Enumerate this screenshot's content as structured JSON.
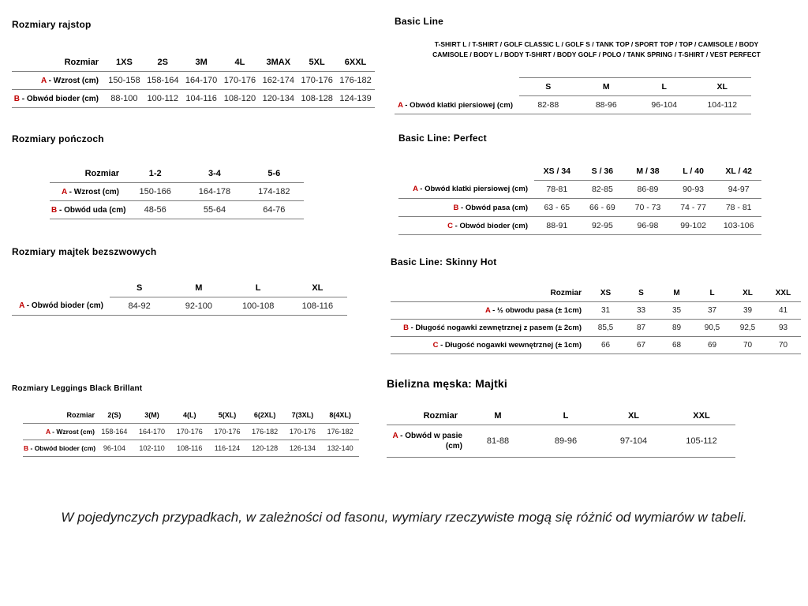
{
  "accent_color": "#c00000",
  "footnote": "W pojedynczych przypadkach, w zależności od fasonu, wymiary rzeczywiste mogą się różnić od wymiarów w tabeli.",
  "tables": [
    {
      "title": "Rozmiary rajstop",
      "corner": "Rozmiar",
      "columns": [
        "1XS",
        "2S",
        "3M",
        "4L",
        "3MAX",
        "5XL",
        "6XXL"
      ],
      "rows": [
        {
          "prefix": "A",
          "label": "Wzrost (cm)",
          "values": [
            "150-158",
            "158-164",
            "164-170",
            "170-176",
            "162-174",
            "170-176",
            "176-182"
          ]
        },
        {
          "prefix": "B",
          "label": "Obwód bioder (cm)",
          "values": [
            "88-100",
            "100-112",
            "104-116",
            "108-120",
            "120-134",
            "108-128",
            "124-139"
          ]
        }
      ]
    },
    {
      "title": "Rozmiary pończoch",
      "corner": "Rozmiar",
      "columns": [
        "1-2",
        "3-4",
        "5-6"
      ],
      "rows": [
        {
          "prefix": "A",
          "label": "Wzrost (cm)",
          "values": [
            "150-166",
            "164-178",
            "174-182"
          ]
        },
        {
          "prefix": "B",
          "label": "Obwód uda (cm)",
          "values": [
            "48-56",
            "55-64",
            "64-76"
          ]
        }
      ]
    },
    {
      "title": "Rozmiary majtek bezszwowych",
      "corner": "",
      "columns": [
        "S",
        "M",
        "L",
        "XL"
      ],
      "rows": [
        {
          "prefix": "A",
          "label": "Obwód bioder (cm)",
          "values": [
            "84-92",
            "92-100",
            "100-108",
            "108-116"
          ]
        }
      ]
    },
    {
      "title": "Rozmiary Leggings Black Brillant",
      "corner": "Rozmiar",
      "columns": [
        "2(S)",
        "3(M)",
        "4(L)",
        "5(XL)",
        "6(2XL)",
        "7(3XL)",
        "8(4XL)"
      ],
      "rows": [
        {
          "prefix": "A",
          "label": "Wzrost (cm)",
          "values": [
            "158-164",
            "164-170",
            "170-176",
            "170-176",
            "176-182",
            "170-176",
            "176-182"
          ]
        },
        {
          "prefix": "B",
          "label": "Obwód bioder (cm)",
          "values": [
            "96-104",
            "102-110",
            "108-116",
            "116-124",
            "120-128",
            "126-134",
            "132-140"
          ]
        }
      ]
    },
    {
      "title": "Basic Line",
      "subtitle_lines": [
        "T-SHIRT L / T-SHIRT / GOLF CLASSIC L / GOLF S / TANK TOP / SPORT TOP / TOP / CAMISOLE / BODY",
        "CAMISOLE / BODY L / BODY T-SHIRT / BODY GOLF / POLO / TANK SPRING / T-SHIRT / VEST PERFECT"
      ],
      "corner": "",
      "columns": [
        "S",
        "M",
        "L",
        "XL"
      ],
      "rows": [
        {
          "prefix": "A",
          "label": "Obwód klatki piersiowej (cm)",
          "values": [
            "82-88",
            "88-96",
            "96-104",
            "104-112"
          ]
        }
      ]
    },
    {
      "title": "Basic Line: Perfect",
      "corner": "",
      "columns": [
        "XS / 34",
        "S / 36",
        "M / 38",
        "L / 40",
        "XL / 42"
      ],
      "rows": [
        {
          "prefix": "A",
          "label": "Obwód klatki piersiowej (cm)",
          "values": [
            "78-81",
            "82-85",
            "86-89",
            "90-93",
            "94-97"
          ]
        },
        {
          "prefix": "B",
          "label": "Obwód pasa (cm)",
          "values": [
            "63 - 65",
            "66 - 69",
            "70 - 73",
            "74 - 77",
            "78 - 81"
          ]
        },
        {
          "prefix": "C",
          "label": "Obwód bioder (cm)",
          "values": [
            "88-91",
            "92-95",
            "96-98",
            "99-102",
            "103-106"
          ]
        }
      ]
    },
    {
      "title": "Basic Line: Skinny Hot",
      "corner": "Rozmiar",
      "columns": [
        "XS",
        "S",
        "M",
        "L",
        "XL",
        "XXL"
      ],
      "rows": [
        {
          "prefix": "A",
          "label": "½ obwodu pasa (± 1cm)",
          "values": [
            "31",
            "33",
            "35",
            "37",
            "39",
            "41"
          ]
        },
        {
          "prefix": "B",
          "label": "Długość nogawki zewnętrznej z pasem (± 2cm)",
          "values": [
            "85,5",
            "87",
            "89",
            "90,5",
            "92,5",
            "93"
          ]
        },
        {
          "prefix": "C",
          "label": "Długość nogawki wewnętrznej (± 1cm)",
          "values": [
            "66",
            "67",
            "68",
            "69",
            "70",
            "70"
          ]
        }
      ]
    },
    {
      "title": "Bielizna męska: Majtki",
      "corner": "Rozmiar",
      "columns": [
        "M",
        "L",
        "XL",
        "XXL"
      ],
      "rows": [
        {
          "prefix": "A",
          "label": "Obwód w pasie (cm)",
          "values": [
            "81-88",
            "89-96",
            "97-104",
            "105-112"
          ]
        }
      ]
    }
  ]
}
